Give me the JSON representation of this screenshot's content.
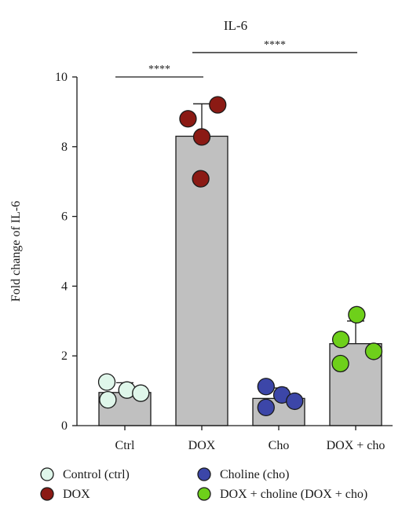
{
  "chart_data": {
    "type": "bar",
    "title": "IL-6",
    "ylabel": "Fold change of IL-6",
    "xlabel": "",
    "ylim": [
      0,
      10
    ],
    "yticks": [
      0,
      2,
      4,
      6,
      8,
      10
    ],
    "categories": [
      "Ctrl",
      "DOX",
      "Cho",
      "DOX + cho"
    ],
    "values": [
      0.95,
      8.3,
      0.78,
      2.35
    ],
    "errors": [
      0.28,
      0.93,
      0.3,
      0.65
    ],
    "bar_color": "#c0c0c0",
    "points": [
      [
        1.25,
        1.02,
        0.93,
        0.74
      ],
      [
        8.8,
        9.2,
        8.28,
        7.08
      ],
      [
        1.12,
        0.88,
        0.52,
        0.7
      ],
      [
        2.47,
        3.18,
        2.13,
        1.78
      ]
    ],
    "point_colors": [
      "#dff6ea",
      "#8b1a14",
      "#3c46a8",
      "#6ed01a"
    ],
    "significance": [
      {
        "from": 0,
        "to": 1,
        "label": "****",
        "y": 10.0
      },
      {
        "from": 1,
        "to": 3,
        "label": "****",
        "y": 10.7
      }
    ],
    "legend": [
      {
        "label": "Control (ctrl)",
        "color": "#dff6ea"
      },
      {
        "label": "Choline (cho)",
        "color": "#3c46a8"
      },
      {
        "label": "DOX",
        "color": "#8b1a14"
      },
      {
        "label": "DOX + choline (DOX + cho)",
        "color": "#6ed01a"
      }
    ],
    "legend_position": "bottom",
    "grid": false
  }
}
